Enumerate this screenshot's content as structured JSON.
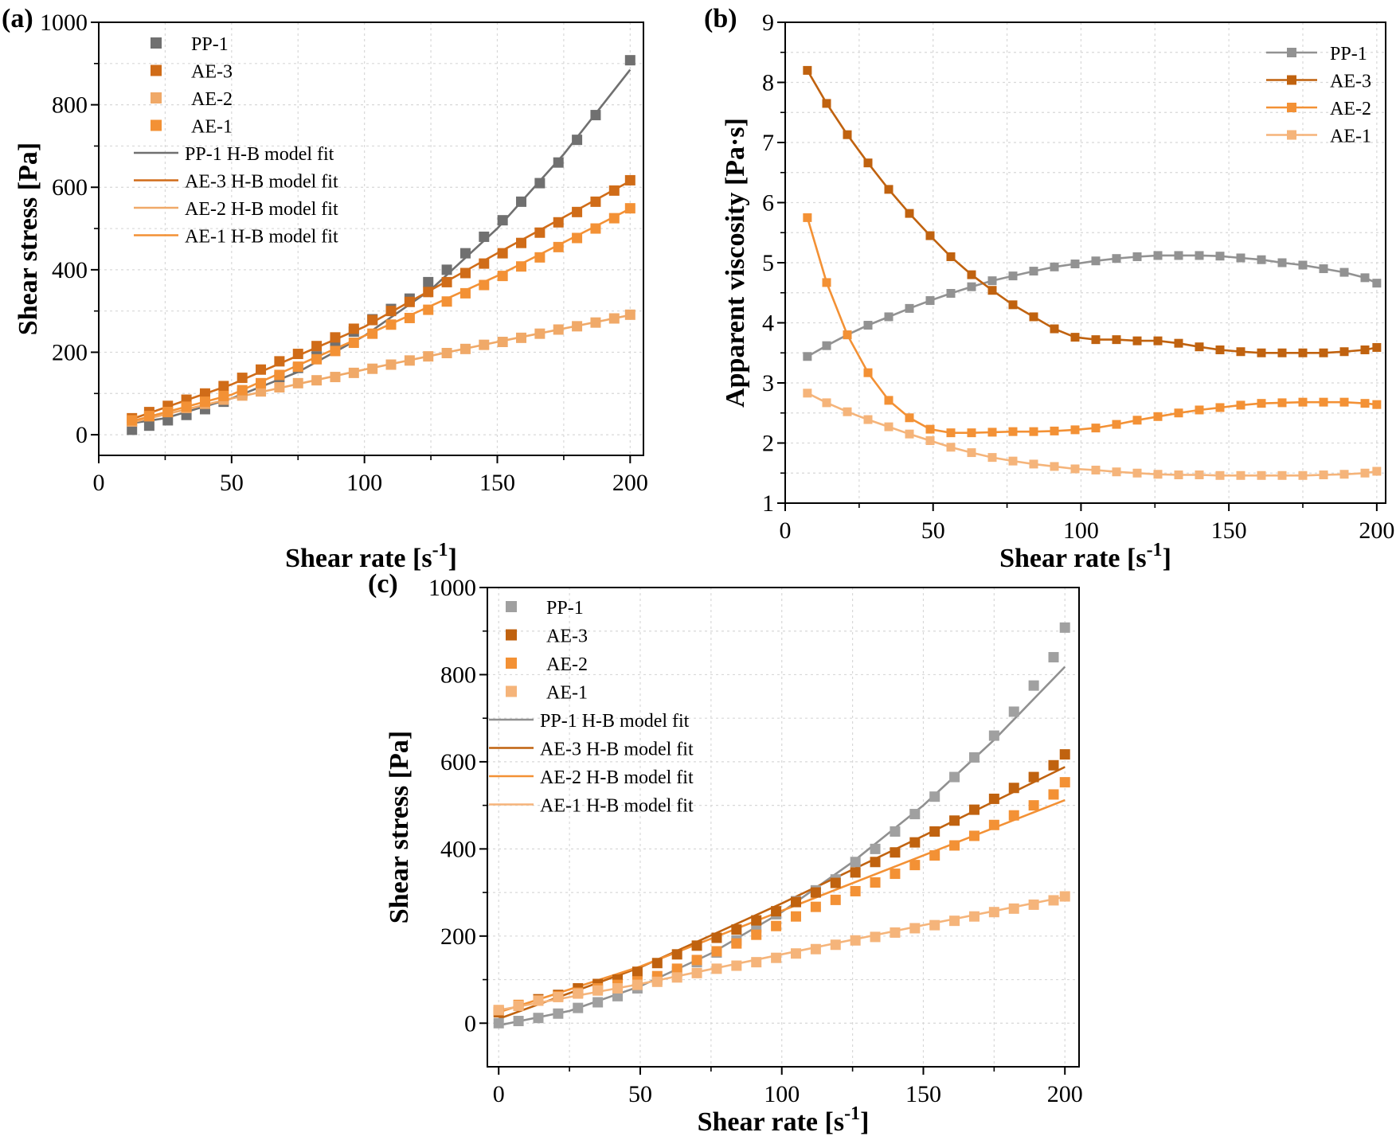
{
  "chart_data": [
    {
      "panel": "(a)",
      "type": "scatter",
      "xlabel": "Shear rate [s",
      "xlabel_sup": "-1",
      "xlabel_end": "]",
      "ylabel": "Shear stress [Pa]",
      "xlim": [
        0,
        205
      ],
      "ylim": [
        -50,
        1000
      ],
      "xticks": [
        0,
        50,
        100,
        150,
        200
      ],
      "yticks": [
        0,
        200,
        400,
        600,
        800,
        1000
      ],
      "grid": true,
      "legend_position": "top-left",
      "series": [
        {
          "name": "PP-1",
          "kind": "markers",
          "color": "#707070",
          "x": [
            12.5,
            19,
            26,
            33,
            40,
            47,
            54,
            61,
            68,
            75,
            82,
            89,
            96,
            103,
            110,
            117,
            124,
            131,
            138,
            145,
            152,
            159,
            166,
            173,
            180,
            187,
            200
          ],
          "y": [
            12,
            22,
            35,
            48,
            62,
            80,
            100,
            118,
            140,
            162,
            190,
            220,
            250,
            280,
            305,
            330,
            370,
            400,
            440,
            480,
            520,
            565,
            610,
            660,
            715,
            775,
            908
          ]
        },
        {
          "name": "AE-3",
          "kind": "markers",
          "color": "#d06c18",
          "x": [
            12.5,
            19,
            26,
            33,
            40,
            47,
            54,
            61,
            68,
            75,
            82,
            89,
            96,
            103,
            110,
            117,
            124,
            131,
            138,
            145,
            152,
            159,
            166,
            173,
            180,
            187,
            194,
            200
          ],
          "y": [
            40,
            55,
            70,
            85,
            100,
            118,
            138,
            158,
            178,
            196,
            215,
            236,
            257,
            278,
            300,
            322,
            346,
            370,
            392,
            415,
            440,
            465,
            490,
            515,
            540,
            565,
            592,
            617
          ]
        },
        {
          "name": "AE-2",
          "kind": "markers",
          "color": "#f0a968",
          "x": [
            12.5,
            19,
            26,
            33,
            40,
            47,
            54,
            61,
            68,
            75,
            82,
            89,
            96,
            103,
            110,
            117,
            124,
            131,
            138,
            145,
            152,
            159,
            166,
            173,
            180,
            187,
            194,
            200
          ],
          "y": [
            32,
            45,
            55,
            65,
            75,
            85,
            95,
            105,
            115,
            125,
            132,
            140,
            150,
            160,
            170,
            180,
            190,
            198,
            208,
            218,
            225,
            235,
            245,
            255,
            263,
            272,
            282,
            291
          ]
        },
        {
          "name": "AE-1",
          "kind": "markers",
          "color": "#f39135",
          "x": [
            12.5,
            19,
            26,
            33,
            40,
            47,
            54,
            61,
            68,
            75,
            82,
            89,
            96,
            103,
            110,
            117,
            124,
            131,
            138,
            145,
            152,
            159,
            166,
            173,
            180,
            187,
            194,
            200
          ],
          "y": [
            35,
            45,
            55,
            68,
            80,
            94,
            108,
            125,
            145,
            165,
            183,
            203,
            223,
            245,
            267,
            283,
            303,
            323,
            343,
            363,
            385,
            408,
            430,
            455,
            477,
            500,
            525,
            549
          ]
        },
        {
          "name": "PP-1 H-B model fit",
          "kind": "line",
          "color": "#707070",
          "x": [
            12.5,
            25,
            50,
            75,
            100,
            125,
            150,
            175,
            200
          ],
          "y": [
            28,
            40,
            88,
            152,
            240,
            352,
            500,
            680,
            885
          ]
        },
        {
          "name": "AE-3 H-B model fit",
          "kind": "line",
          "color": "#d06c18",
          "x": [
            12.5,
            50,
            100,
            150,
            200
          ],
          "y": [
            38,
            122,
            262,
            440,
            615
          ]
        },
        {
          "name": "AE-2 H-B model fit",
          "kind": "line",
          "color": "#f0a968",
          "x": [
            12.5,
            50,
            100,
            150,
            200
          ],
          "y": [
            30,
            88,
            158,
            225,
            290
          ]
        },
        {
          "name": "AE-1 H-B model fit",
          "kind": "line",
          "color": "#f39135",
          "x": [
            12.5,
            50,
            100,
            150,
            200
          ],
          "y": [
            33,
            97,
            240,
            385,
            548
          ]
        }
      ]
    },
    {
      "panel": "(b)",
      "type": "line",
      "xlabel": "Shear rate [s",
      "xlabel_sup": "-1",
      "xlabel_end": "]",
      "ylabel": "Apparent viscosity [Pa·s]",
      "xlim": [
        0,
        203
      ],
      "ylim": [
        1,
        9
      ],
      "xticks": [
        0,
        50,
        100,
        150,
        200
      ],
      "yticks": [
        1,
        2,
        3,
        4,
        5,
        6,
        7,
        8,
        9
      ],
      "grid": true,
      "legend_position": "top-right",
      "series": [
        {
          "name": "PP-1",
          "color": "#929292",
          "x": [
            7.5,
            14,
            21,
            28,
            35,
            42,
            49,
            56,
            63,
            70,
            77,
            84,
            91,
            98,
            105,
            112,
            119,
            126,
            133,
            140,
            147,
            154,
            161,
            168,
            175,
            182,
            189,
            196,
            200
          ],
          "y": [
            3.44,
            3.62,
            3.8,
            3.96,
            4.1,
            4.24,
            4.37,
            4.49,
            4.6,
            4.7,
            4.78,
            4.86,
            4.93,
            4.98,
            5.03,
            5.07,
            5.1,
            5.12,
            5.12,
            5.12,
            5.11,
            5.08,
            5.05,
            5.0,
            4.96,
            4.9,
            4.84,
            4.75,
            4.66
          ]
        },
        {
          "name": "AE-3",
          "color": "#c0620f",
          "x": [
            7.5,
            14,
            21,
            28,
            35,
            42,
            49,
            56,
            63,
            70,
            77,
            84,
            91,
            98,
            105,
            112,
            119,
            126,
            133,
            140,
            147,
            154,
            161,
            168,
            175,
            182,
            189,
            196,
            200
          ],
          "y": [
            8.2,
            7.65,
            7.13,
            6.66,
            6.22,
            5.82,
            5.45,
            5.1,
            4.8,
            4.54,
            4.3,
            4.1,
            3.9,
            3.76,
            3.72,
            3.72,
            3.7,
            3.7,
            3.66,
            3.6,
            3.55,
            3.52,
            3.5,
            3.5,
            3.5,
            3.5,
            3.52,
            3.55,
            3.59
          ]
        },
        {
          "name": "AE-2",
          "color": "#f39135",
          "x": [
            7.5,
            14,
            21,
            28,
            35,
            42,
            49,
            56,
            63,
            70,
            77,
            84,
            91,
            98,
            105,
            112,
            119,
            126,
            133,
            140,
            147,
            154,
            161,
            168,
            175,
            182,
            189,
            196,
            200
          ],
          "y": [
            5.75,
            4.67,
            3.8,
            3.17,
            2.71,
            2.42,
            2.23,
            2.17,
            2.17,
            2.18,
            2.19,
            2.19,
            2.2,
            2.22,
            2.25,
            2.31,
            2.38,
            2.44,
            2.5,
            2.55,
            2.59,
            2.63,
            2.66,
            2.67,
            2.68,
            2.68,
            2.68,
            2.66,
            2.64
          ]
        },
        {
          "name": "AE-1",
          "color": "#f5b47a",
          "x": [
            7.5,
            14,
            21,
            28,
            35,
            42,
            49,
            56,
            63,
            70,
            77,
            84,
            91,
            98,
            105,
            112,
            119,
            126,
            133,
            140,
            147,
            154,
            161,
            168,
            175,
            182,
            189,
            196,
            200
          ],
          "y": [
            2.83,
            2.67,
            2.52,
            2.39,
            2.27,
            2.15,
            2.04,
            1.93,
            1.84,
            1.76,
            1.7,
            1.65,
            1.61,
            1.57,
            1.55,
            1.52,
            1.5,
            1.48,
            1.47,
            1.47,
            1.46,
            1.46,
            1.46,
            1.46,
            1.46,
            1.47,
            1.48,
            1.5,
            1.53
          ]
        }
      ]
    },
    {
      "panel": "(c)",
      "type": "scatter",
      "xlabel": "Shear rate [s",
      "xlabel_sup": "-1",
      "xlabel_end": "]",
      "ylabel": "Shear stress [Pa]",
      "xlim": [
        -4,
        205
      ],
      "ylim": [
        -100,
        1000
      ],
      "xticks": [
        0,
        50,
        100,
        150,
        200
      ],
      "yticks": [
        0,
        200,
        400,
        600,
        800,
        1000
      ],
      "grid": true,
      "legend_position": "top-left",
      "series": [
        {
          "name": "PP-1",
          "kind": "markers",
          "color": "#a0a0a0",
          "x": [
            0,
            7,
            14,
            21,
            28,
            35,
            42,
            49,
            56,
            63,
            70,
            77,
            84,
            91,
            98,
            105,
            112,
            119,
            126,
            133,
            140,
            147,
            154,
            161,
            168,
            175,
            182,
            189,
            196,
            200
          ],
          "y": [
            0,
            5,
            12,
            22,
            35,
            48,
            62,
            80,
            100,
            118,
            140,
            162,
            190,
            220,
            250,
            280,
            305,
            330,
            370,
            400,
            440,
            480,
            520,
            565,
            610,
            660,
            715,
            775,
            840,
            908
          ]
        },
        {
          "name": "AE-3",
          "kind": "markers",
          "color": "#c0620f",
          "x": [
            0,
            7,
            14,
            21,
            28,
            35,
            42,
            49,
            56,
            63,
            70,
            77,
            84,
            91,
            98,
            105,
            112,
            119,
            126,
            133,
            140,
            147,
            154,
            161,
            168,
            175,
            182,
            189,
            196,
            200
          ],
          "y": [
            25,
            40,
            55,
            65,
            80,
            90,
            100,
            118,
            138,
            158,
            178,
            196,
            215,
            236,
            257,
            278,
            300,
            322,
            346,
            370,
            392,
            415,
            440,
            465,
            490,
            515,
            540,
            565,
            592,
            617
          ]
        },
        {
          "name": "AE-2",
          "kind": "markers",
          "color": "#f39135",
          "x": [
            0,
            7,
            14,
            21,
            28,
            35,
            42,
            49,
            56,
            63,
            70,
            77,
            84,
            91,
            98,
            105,
            112,
            119,
            126,
            133,
            140,
            147,
            154,
            161,
            168,
            175,
            182,
            189,
            196,
            200
          ],
          "y": [
            30,
            42,
            52,
            62,
            70,
            80,
            88,
            96,
            108,
            125,
            145,
            165,
            183,
            203,
            223,
            245,
            267,
            283,
            303,
            323,
            343,
            363,
            385,
            408,
            430,
            455,
            477,
            500,
            525,
            553
          ]
        },
        {
          "name": "AE-1",
          "kind": "markers",
          "color": "#f5b47a",
          "x": [
            0,
            7,
            14,
            21,
            28,
            35,
            42,
            49,
            56,
            63,
            70,
            77,
            84,
            91,
            98,
            105,
            112,
            119,
            126,
            133,
            140,
            147,
            154,
            161,
            168,
            175,
            182,
            189,
            196,
            200
          ],
          "y": [
            30,
            40,
            52,
            60,
            68,
            75,
            80,
            88,
            95,
            105,
            115,
            125,
            132,
            140,
            150,
            160,
            170,
            180,
            190,
            198,
            208,
            218,
            225,
            235,
            245,
            255,
            263,
            272,
            282,
            291
          ]
        },
        {
          "name": "PP-1 H-B model fit",
          "kind": "line",
          "color": "#909090",
          "x": [
            0,
            25,
            50,
            75,
            100,
            125,
            150,
            175,
            200
          ],
          "y": [
            -5,
            28,
            85,
            160,
            255,
            370,
            500,
            650,
            818
          ]
        },
        {
          "name": "AE-3 H-B model fit",
          "kind": "line",
          "color": "#c0620f",
          "x": [
            0,
            50,
            100,
            150,
            200
          ],
          "y": [
            10,
            128,
            275,
            430,
            588
          ]
        },
        {
          "name": "AE-2 H-B model fit",
          "kind": "line",
          "color": "#f39135",
          "x": [
            0,
            50,
            100,
            150,
            200
          ],
          "y": [
            25,
            130,
            258,
            385,
            512
          ]
        },
        {
          "name": "AE-1 H-B model fit",
          "kind": "line",
          "color": "#f5b47a",
          "x": [
            0,
            50,
            100,
            150,
            200
          ],
          "y": [
            30,
            90,
            158,
            225,
            290
          ]
        }
      ]
    }
  ]
}
